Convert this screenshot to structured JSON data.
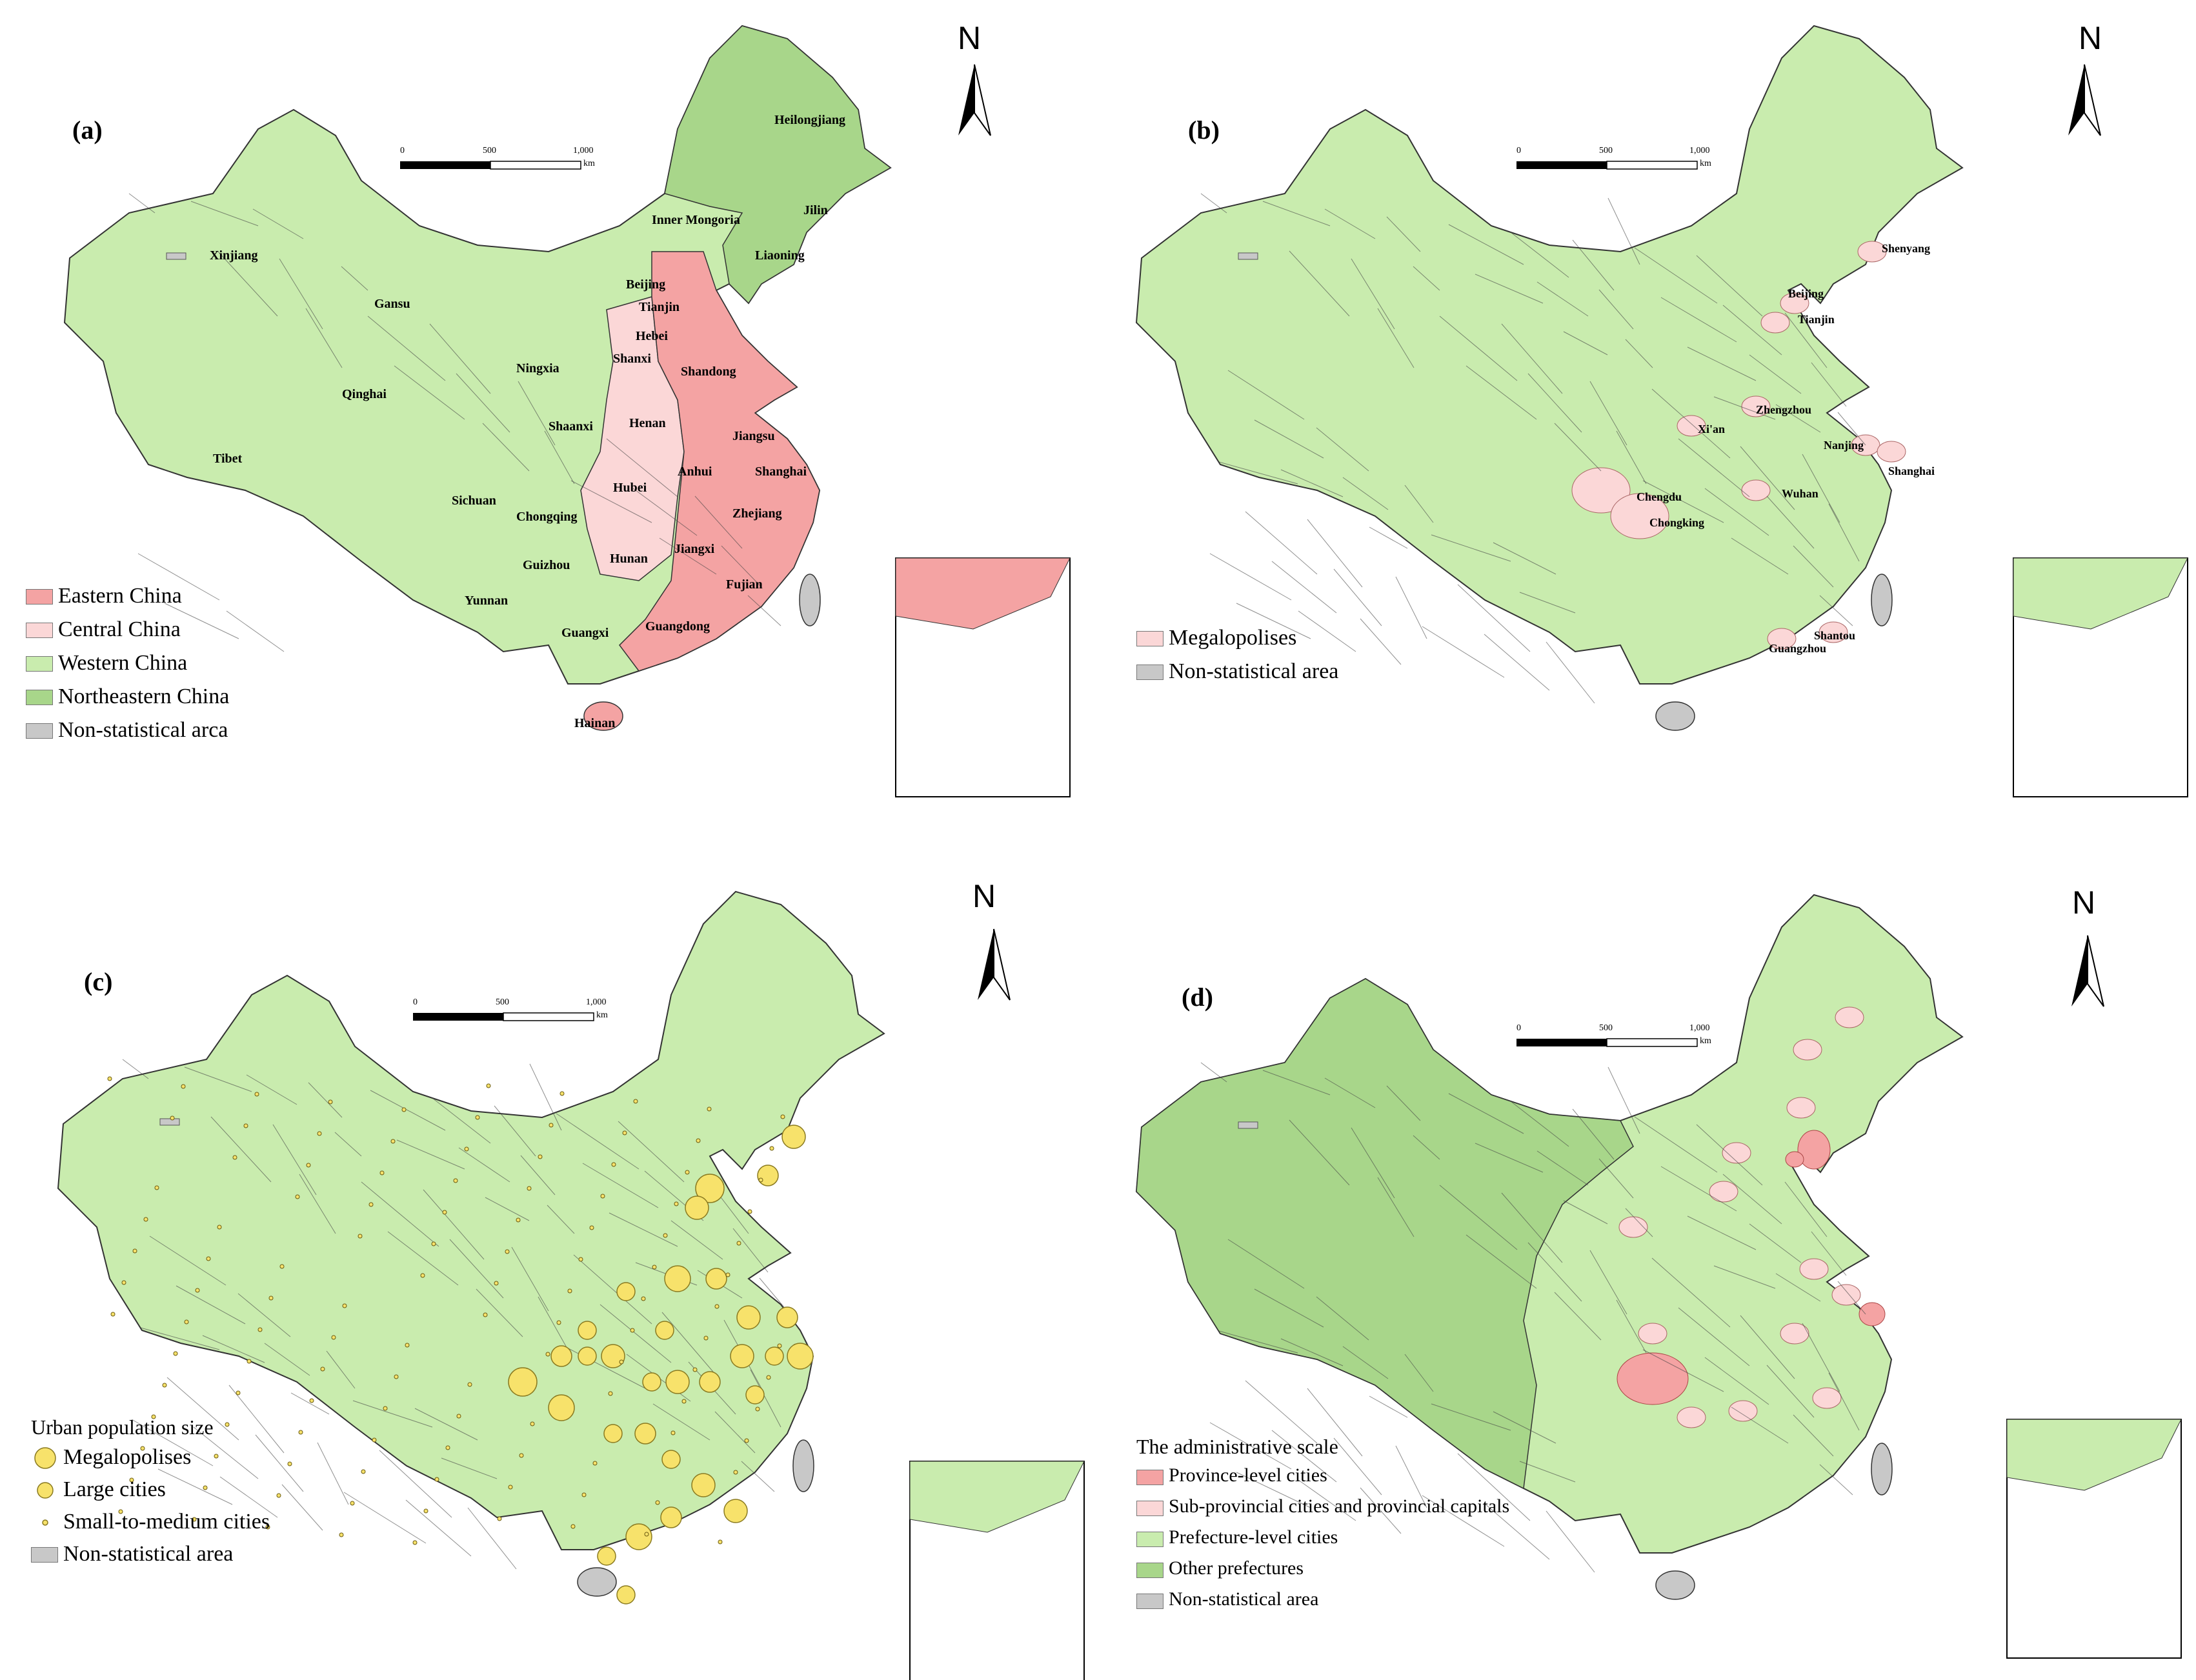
{
  "panels": [
    {
      "letter": "(a)",
      "north": "N",
      "scale": {
        "ticks": [
          "0",
          "500",
          "1,000"
        ],
        "unit": "km"
      },
      "legend": {
        "title": "",
        "items": [
          {
            "label": "Eastern China",
            "color": "#f4a3a3"
          },
          {
            "label": "Central China",
            "color": "#fbd7d7"
          },
          {
            "label": "Western China",
            "color": "#c9ecae"
          },
          {
            "label": "Northeastern China",
            "color": "#a8d68a"
          },
          {
            "label": "Non-statistical arca",
            "color": "#c8c8c8"
          }
        ]
      },
      "places": [
        "Heilongjiang",
        "Jilin",
        "Liaoning",
        "Inner Mongoria",
        "Xinjiang",
        "Gansu",
        "Qinghai",
        "Tibet",
        "Ningxia",
        "Shaanxi",
        "Sichuan",
        "Chongqing",
        "Guizhou",
        "Yunnan",
        "Guangxi",
        "Beijing",
        "Tianjin",
        "Hebei",
        "Shanxi",
        "Shandong",
        "Henan",
        "Jiangsu",
        "Anhui",
        "Shanghai",
        "Hubei",
        "Zhejiang",
        "Hunan",
        "Jiangxi",
        "Fujian",
        "Guangdong",
        "Hainan"
      ]
    },
    {
      "letter": "(b)",
      "north": "N",
      "scale": {
        "ticks": [
          "0",
          "500",
          "1,000"
        ],
        "unit": "km"
      },
      "legend": {
        "title": "",
        "items": [
          {
            "label": "Megalopolises",
            "color": "#fbd7d7"
          },
          {
            "label": "Non-statistical area",
            "color": "#c8c8c8"
          }
        ]
      },
      "places": [
        "Shenyang",
        "Beijing",
        "Tianjin",
        "Zhengzhou",
        "Xi'an",
        "Nanjing",
        "Shanghai",
        "Chengdu",
        "Wuhan",
        "Chongking",
        "Shantou",
        "Guangzhou"
      ]
    },
    {
      "letter": "(c)",
      "north": "N",
      "scale": {
        "ticks": [
          "0",
          "500",
          "1,000"
        ],
        "unit": "km"
      },
      "legend": {
        "title": "Urban population size",
        "items": [
          {
            "label": "Megalopolises",
            "color": "#f7e26b"
          },
          {
            "label": "Large cities",
            "color": "#f7e26b"
          },
          {
            "label": "Small-to-medium cities",
            "color": "#f7e26b"
          },
          {
            "label": "Non-statistical area",
            "color": "#c8c8c8"
          }
        ]
      },
      "places": []
    },
    {
      "letter": "(d)",
      "north": "N",
      "scale": {
        "ticks": [
          "0",
          "500",
          "1,000"
        ],
        "unit": "km"
      },
      "legend": {
        "title": "The administrative scale",
        "items": [
          {
            "label": "Province-level cities",
            "color": "#f4a3a3"
          },
          {
            "label": "Sub-provincial cities and provincial capitals",
            "color": "#fbd7d7"
          },
          {
            "label": "Prefecture-level cities",
            "color": "#c9ecae"
          },
          {
            "label": "Other prefectures",
            "color": "#a8d68a"
          },
          {
            "label": "Non-statistical area",
            "color": "#c8c8c8"
          }
        ]
      },
      "places": []
    }
  ]
}
